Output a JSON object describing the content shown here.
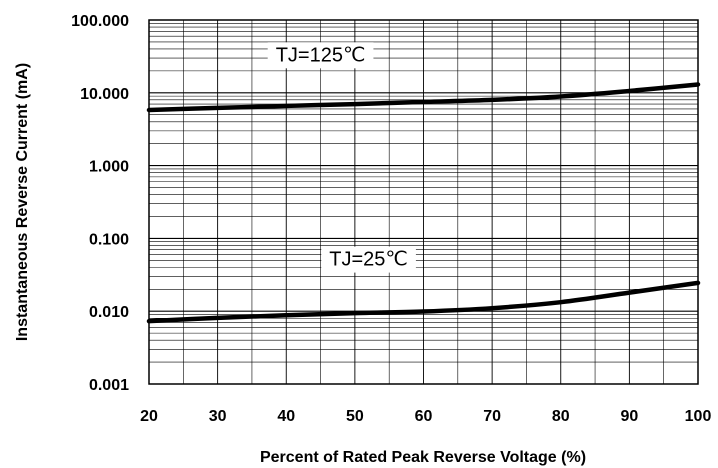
{
  "chart_data": {
    "type": "line",
    "title": "",
    "xlabel": "Percent of Rated Peak Reverse Voltage (%)",
    "ylabel": "Instantaneous Reverse Current (mA)",
    "xlim": [
      20,
      100
    ],
    "ylim": [
      0.001,
      100
    ],
    "y_scale": "log",
    "grid": true,
    "x_ticks": [
      20,
      30,
      40,
      50,
      60,
      70,
      80,
      90,
      100
    ],
    "x_tick_labels": [
      "20",
      "30",
      "40",
      "50",
      "60",
      "70",
      "80",
      "90",
      "100"
    ],
    "y_ticks": [
      0.001,
      0.01,
      0.1,
      1,
      10,
      100
    ],
    "y_tick_labels": [
      "0.001",
      "0.010",
      "0.100",
      "1.000",
      "10.000",
      "100.000"
    ],
    "series": [
      {
        "x": [
          20,
          30,
          40,
          50,
          60,
          70,
          80,
          90,
          100
        ],
        "y": [
          5.8,
          6.2,
          6.6,
          7.0,
          7.5,
          8.0,
          8.9,
          10.6,
          13.0
        ]
      },
      {
        "x": [
          20,
          30,
          40,
          50,
          60,
          70,
          80,
          90,
          100
        ],
        "y": [
          0.0073,
          0.0081,
          0.0088,
          0.0094,
          0.0099,
          0.011,
          0.0133,
          0.018,
          0.0245
        ]
      }
    ],
    "annotations": [
      {
        "text": "TJ=125℃",
        "x": 45,
        "y": 32
      },
      {
        "text": "TJ=25℃",
        "x": 52,
        "y": 0.05
      }
    ],
    "colors": {
      "series": "#000000",
      "grid": "#000000",
      "background": "#ffffff"
    }
  }
}
